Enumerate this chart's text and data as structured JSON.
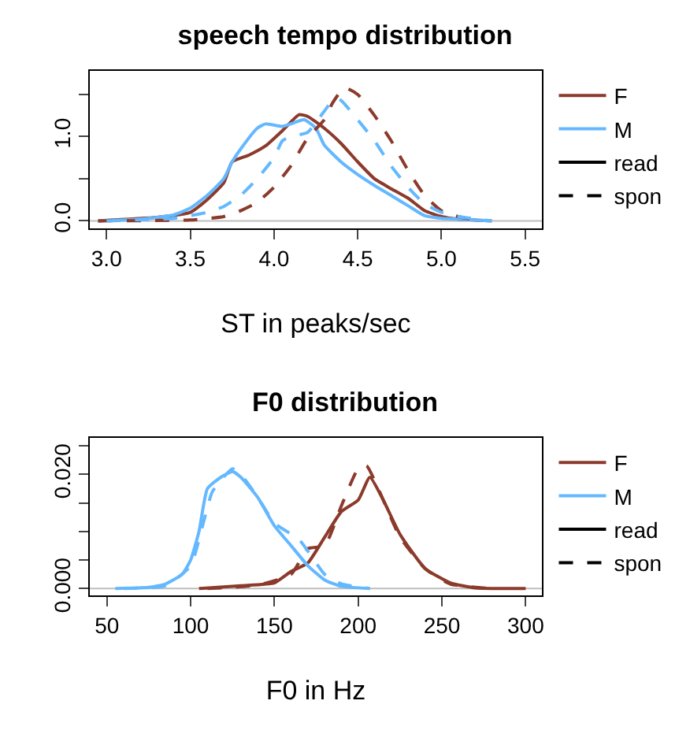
{
  "chart_data": [
    {
      "type": "line",
      "title": "speech tempo distribution",
      "xlabel": "ST in peaks/sec",
      "xlim": [
        2.9,
        5.6
      ],
      "xticks": [
        {
          "value": 3,
          "label": "3.0"
        },
        3.5,
        {
          "value": 4,
          "label": "4.0"
        },
        4.5,
        {
          "value": 5,
          "label": "5.0"
        },
        5.5
      ],
      "ylim": [
        -0.09,
        1.78
      ],
      "yticks": [
        {
          "value": 0,
          "label": "0.0"
        },
        {
          "value": 0.5,
          "label": null
        },
        {
          "value": 1,
          "label": "1.0"
        },
        {
          "value": 1.5,
          "label": null
        }
      ],
      "grid": false,
      "legend": "right",
      "ref_lines": [
        {
          "axis": "y",
          "value": 0,
          "label": null,
          "color": "#bebebe"
        }
      ],
      "series": [
        {
          "name": "F",
          "color": "#8b3a2b",
          "line_style": "solid",
          "x": [
            2.95,
            3.3,
            3.5,
            3.6,
            3.7,
            3.75,
            3.85,
            3.95,
            4.05,
            4.15,
            4.2,
            4.3,
            4.4,
            4.5,
            4.6,
            4.7,
            4.8,
            4.9,
            5.0,
            5.1,
            5.3
          ],
          "values": [
            0,
            0.04,
            0.1,
            0.25,
            0.45,
            0.7,
            0.78,
            0.89,
            1.07,
            1.26,
            1.24,
            1.1,
            0.92,
            0.7,
            0.5,
            0.38,
            0.27,
            0.12,
            0.05,
            0.02,
            0
          ]
        },
        {
          "name": "M",
          "color": "#63b8ff",
          "line_style": "solid",
          "x": [
            2.95,
            3.2,
            3.4,
            3.5,
            3.6,
            3.7,
            3.75,
            3.8,
            3.9,
            3.95,
            4.05,
            4.1,
            4.18,
            4.25,
            4.3,
            4.4,
            4.5,
            4.6,
            4.7,
            4.8,
            4.9,
            5.0,
            5.1,
            5.3
          ],
          "values": [
            0,
            0.02,
            0.07,
            0.15,
            0.3,
            0.5,
            0.7,
            0.85,
            1.1,
            1.15,
            1.12,
            1.15,
            1.2,
            1.1,
            0.9,
            0.7,
            0.55,
            0.42,
            0.3,
            0.18,
            0.06,
            0.03,
            0.02,
            0
          ]
        },
        {
          "color": "#8b3a2b",
          "line_style": "dashed",
          "x": [
            2.95,
            3.5,
            3.7,
            3.8,
            3.9,
            4.0,
            4.1,
            4.2,
            4.3,
            4.35,
            4.42,
            4.5,
            4.6,
            4.7,
            4.8,
            4.9,
            5.0,
            5.1,
            5.2
          ],
          "values": [
            0,
            0.01,
            0.05,
            0.12,
            0.22,
            0.4,
            0.65,
            0.98,
            1.2,
            1.4,
            1.58,
            1.5,
            1.25,
            0.95,
            0.6,
            0.3,
            0.12,
            0.05,
            0.01
          ]
        },
        {
          "color": "#63b8ff",
          "line_style": "dashed",
          "x": [
            3.0,
            3.4,
            3.6,
            3.7,
            3.8,
            3.9,
            4.0,
            4.05,
            4.1,
            4.2,
            4.3,
            4.36,
            4.4,
            4.5,
            4.6,
            4.7,
            4.8,
            4.9,
            5.0,
            5.1,
            5.3
          ],
          "values": [
            0,
            0.03,
            0.1,
            0.17,
            0.3,
            0.5,
            0.75,
            0.95,
            1.0,
            1.05,
            1.3,
            1.45,
            1.43,
            1.2,
            0.95,
            0.65,
            0.4,
            0.2,
            0.1,
            0.05,
            0
          ]
        },
        {
          "name": "read",
          "color": "#000000",
          "line_style": "solid",
          "values": [
            null
          ]
        },
        {
          "name": "spon",
          "color": "#000000",
          "line_style": "dashed",
          "values": [
            null
          ]
        }
      ]
    },
    {
      "type": "line",
      "title": "F0 distribution",
      "xlabel": "F0 in Hz",
      "xlim": [
        39.8,
        309.7
      ],
      "xticks": [
        50,
        100,
        150,
        200,
        250,
        300
      ],
      "ylim": [
        -0.0012,
        0.0264
      ],
      "yticks": [
        {
          "value": 0,
          "label": "0.000"
        },
        {
          "value": 0.005,
          "label": null
        },
        {
          "value": 0.01,
          "label": null
        },
        {
          "value": 0.015,
          "label": null
        },
        {
          "value": 0.02,
          "label": "0.020"
        },
        {
          "value": 0.025,
          "label": null
        }
      ],
      "grid": false,
      "legend": "right",
      "ref_lines": [
        {
          "axis": "y",
          "value": 0,
          "label": null,
          "color": "#bebebe"
        }
      ],
      "series": [
        {
          "name": "F",
          "color": "#8b3a2b",
          "line_style": "solid",
          "x": [
            105,
            130,
            150,
            160,
            170,
            180,
            190,
            200,
            207,
            215,
            225,
            240,
            255,
            270,
            300
          ],
          "values": [
            0,
            0.0005,
            0.001,
            0.003,
            0.0045,
            0.009,
            0.0135,
            0.0155,
            0.0195,
            0.0155,
            0.0095,
            0.0035,
            0.001,
            0.0001,
            0
          ]
        },
        {
          "name": "M",
          "color": "#63b8ff",
          "line_style": "solid",
          "x": [
            55,
            75,
            85,
            95,
            100,
            105,
            110,
            118,
            125,
            130,
            140,
            150,
            160,
            170,
            180,
            190,
            207
          ],
          "values": [
            0,
            0.0002,
            0.0008,
            0.0025,
            0.005,
            0.01,
            0.0175,
            0.0195,
            0.0205,
            0.0195,
            0.016,
            0.011,
            0.0075,
            0.004,
            0.0015,
            0.0004,
            0
          ]
        },
        {
          "color": "#8b3a2b",
          "line_style": "dashed",
          "x": [
            110,
            140,
            160,
            170,
            180,
            190,
            200,
            205,
            212,
            225,
            240,
            255,
            280
          ],
          "values": [
            0,
            0.0006,
            0.0025,
            0.007,
            0.0075,
            0.0145,
            0.021,
            0.0215,
            0.0175,
            0.009,
            0.0035,
            0.0008,
            0
          ]
        },
        {
          "color": "#63b8ff",
          "line_style": "dashed",
          "x": [
            60,
            85,
            100,
            108,
            113,
            125,
            130,
            140,
            150,
            165,
            180,
            190,
            207
          ],
          "values": [
            0,
            0.0005,
            0.004,
            0.012,
            0.017,
            0.021,
            0.02,
            0.016,
            0.0115,
            0.0085,
            0.0025,
            0.0008,
            0
          ]
        },
        {
          "name": "read",
          "color": "#000000",
          "line_style": "solid",
          "values": [
            null
          ]
        },
        {
          "name": "spon",
          "color": "#000000",
          "line_style": "dashed",
          "values": [
            null
          ]
        }
      ]
    }
  ]
}
